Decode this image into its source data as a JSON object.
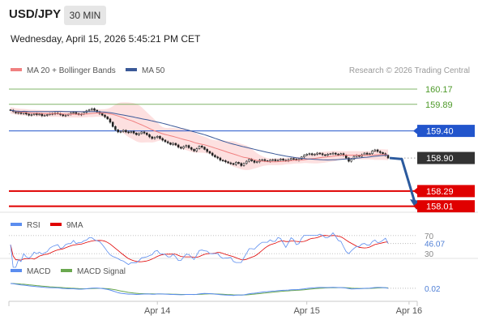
{
  "header": {
    "symbol": "USD/JPY",
    "timeframe": "30 MIN",
    "datetime": "Wednesday, April 15, 2026 5:45:21 PM CET"
  },
  "legend": {
    "ma20": "MA 20 + Bollinger Bands",
    "ma50": "MA 50",
    "copyright": "Research © 2026 Trading Central"
  },
  "colors": {
    "ma20": "#f08080",
    "ma50": "#3b5998",
    "band": "#fde0e0",
    "target": "#6aa84f",
    "pivot": "#2255cc",
    "support": "#e00000",
    "candle": "#222222",
    "rsi": "#5b8def",
    "rsi_ma": "#e00000",
    "macd": "#5b8def",
    "macd_signal": "#6aa84f",
    "arrow": "#2b5a9e",
    "last": "#333333"
  },
  "chart_data": [
    {
      "type": "candlestick",
      "name": "price",
      "levels": [
        {
          "value": 160.17,
          "label": "160.17",
          "kind": "target"
        },
        {
          "value": 159.89,
          "label": "159.89",
          "kind": "target"
        },
        {
          "value": 159.4,
          "label": "159.40",
          "kind": "pivot"
        },
        {
          "value": 158.9,
          "label": "158.90",
          "kind": "last"
        },
        {
          "value": 158.29,
          "label": "158.29",
          "kind": "support"
        },
        {
          "value": 158.01,
          "label": "158.01",
          "kind": "support"
        }
      ],
      "ylim": [
        157.96,
        160.32
      ],
      "x_ticks": [
        {
          "label": "Apr 14",
          "index": 56
        },
        {
          "label": "Apr 15",
          "index": 113
        },
        {
          "label": "Apr 16",
          "index": 152
        }
      ],
      "close": [
        159.78,
        159.76,
        159.73,
        159.74,
        159.72,
        159.74,
        159.71,
        159.69,
        159.7,
        159.72,
        159.7,
        159.71,
        159.68,
        159.69,
        159.7,
        159.72,
        159.71,
        159.73,
        159.72,
        159.7,
        159.68,
        159.69,
        159.71,
        159.73,
        159.74,
        159.72,
        159.7,
        159.71,
        159.74,
        159.77,
        159.79,
        159.81,
        159.78,
        159.75,
        159.72,
        159.69,
        159.66,
        159.62,
        159.56,
        159.48,
        159.42,
        159.38,
        159.39,
        159.41,
        159.38,
        159.37,
        159.39,
        159.36,
        159.33,
        159.35,
        159.38,
        159.36,
        159.33,
        159.29,
        159.26,
        159.28,
        159.3,
        159.26,
        159.23,
        159.2,
        159.18,
        159.15,
        159.17,
        159.14,
        159.1,
        159.08,
        159.11,
        159.13,
        159.09,
        159.06,
        159.03,
        159.07,
        159.12,
        159.1,
        159.06,
        159.02,
        158.99,
        158.95,
        158.92,
        158.9,
        158.86,
        158.85,
        158.83,
        158.81,
        158.8,
        158.78,
        158.82,
        158.8,
        158.76,
        158.8,
        158.84,
        158.88,
        158.85,
        158.82,
        158.83,
        158.86,
        158.87,
        158.85,
        158.84,
        158.86,
        158.87,
        158.85,
        158.86,
        158.88,
        158.86,
        158.85,
        158.87,
        158.89,
        158.88,
        158.86,
        158.88,
        158.92,
        158.95,
        158.97,
        158.98,
        158.96,
        158.97,
        158.99,
        158.98,
        158.96,
        158.95,
        158.97,
        158.98,
        158.99,
        158.97,
        158.96,
        158.98,
        158.95,
        158.9,
        158.84,
        158.88,
        158.93,
        158.95,
        158.93,
        158.96,
        158.99,
        158.97,
        158.98,
        159.03,
        159.05,
        159.02,
        159.0,
        158.98,
        158.95,
        158.9
      ]
    },
    {
      "type": "line",
      "name": "rsi",
      "series": [
        {
          "name": "RSI",
          "key": "rsi"
        },
        {
          "name": "9MA",
          "key": "rsi_ma"
        }
      ],
      "ticks": [
        "70",
        "30"
      ],
      "last_value": "46.07",
      "ylim": [
        25,
        75
      ]
    },
    {
      "type": "line",
      "name": "macd",
      "series": [
        {
          "name": "MACD",
          "key": "macd"
        },
        {
          "name": "MACD Signal",
          "key": "signal"
        }
      ],
      "last_value": "0.02",
      "ylim": [
        -0.25,
        0.23
      ]
    }
  ]
}
